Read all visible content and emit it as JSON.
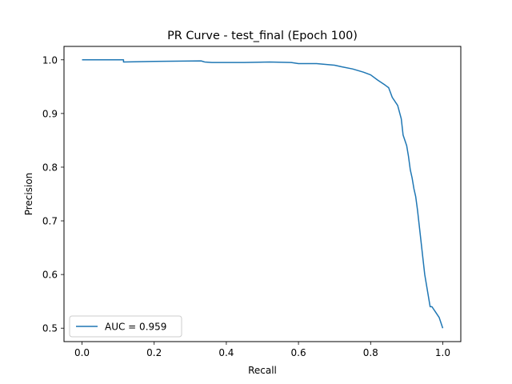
{
  "chart_data": {
    "type": "line",
    "title": "PR Curve - test_final (Epoch 100)",
    "xlabel": "Recall",
    "ylabel": "Precision",
    "xlim": [
      -0.05,
      1.05
    ],
    "ylim": [
      0.475,
      1.025
    ],
    "xticks": [
      0.0,
      0.2,
      0.4,
      0.6,
      0.8,
      1.0
    ],
    "xtick_labels": [
      "0.0",
      "0.2",
      "0.4",
      "0.6",
      "0.8",
      "1.0"
    ],
    "yticks": [
      0.5,
      0.6,
      0.7,
      0.8,
      0.9,
      1.0
    ],
    "ytick_labels": [
      "0.5",
      "0.6",
      "0.7",
      "0.8",
      "0.9",
      "1.0"
    ],
    "grid": false,
    "legend_position": "lower-left",
    "series": [
      {
        "name": "AUC = 0.959",
        "color": "#1f77b4",
        "x": [
          0.0,
          0.05,
          0.115,
          0.115,
          0.2,
          0.33,
          0.34,
          0.36,
          0.45,
          0.52,
          0.58,
          0.6,
          0.65,
          0.7,
          0.72,
          0.75,
          0.78,
          0.8,
          0.82,
          0.84,
          0.85,
          0.86,
          0.865,
          0.875,
          0.885,
          0.89,
          0.9,
          0.905,
          0.91,
          0.915,
          0.92,
          0.925,
          0.93,
          0.935,
          0.94,
          0.945,
          0.95,
          0.955,
          0.96,
          0.965,
          0.97,
          0.98,
          0.99,
          0.995,
          1.0
        ],
        "y": [
          1.0,
          1.0,
          1.0,
          0.996,
          0.997,
          0.998,
          0.996,
          0.995,
          0.995,
          0.996,
          0.995,
          0.993,
          0.993,
          0.99,
          0.987,
          0.983,
          0.977,
          0.972,
          0.962,
          0.953,
          0.948,
          0.93,
          0.925,
          0.915,
          0.89,
          0.86,
          0.84,
          0.82,
          0.795,
          0.78,
          0.76,
          0.745,
          0.72,
          0.69,
          0.66,
          0.63,
          0.6,
          0.58,
          0.56,
          0.54,
          0.54,
          0.53,
          0.52,
          0.51,
          0.5
        ]
      }
    ]
  }
}
